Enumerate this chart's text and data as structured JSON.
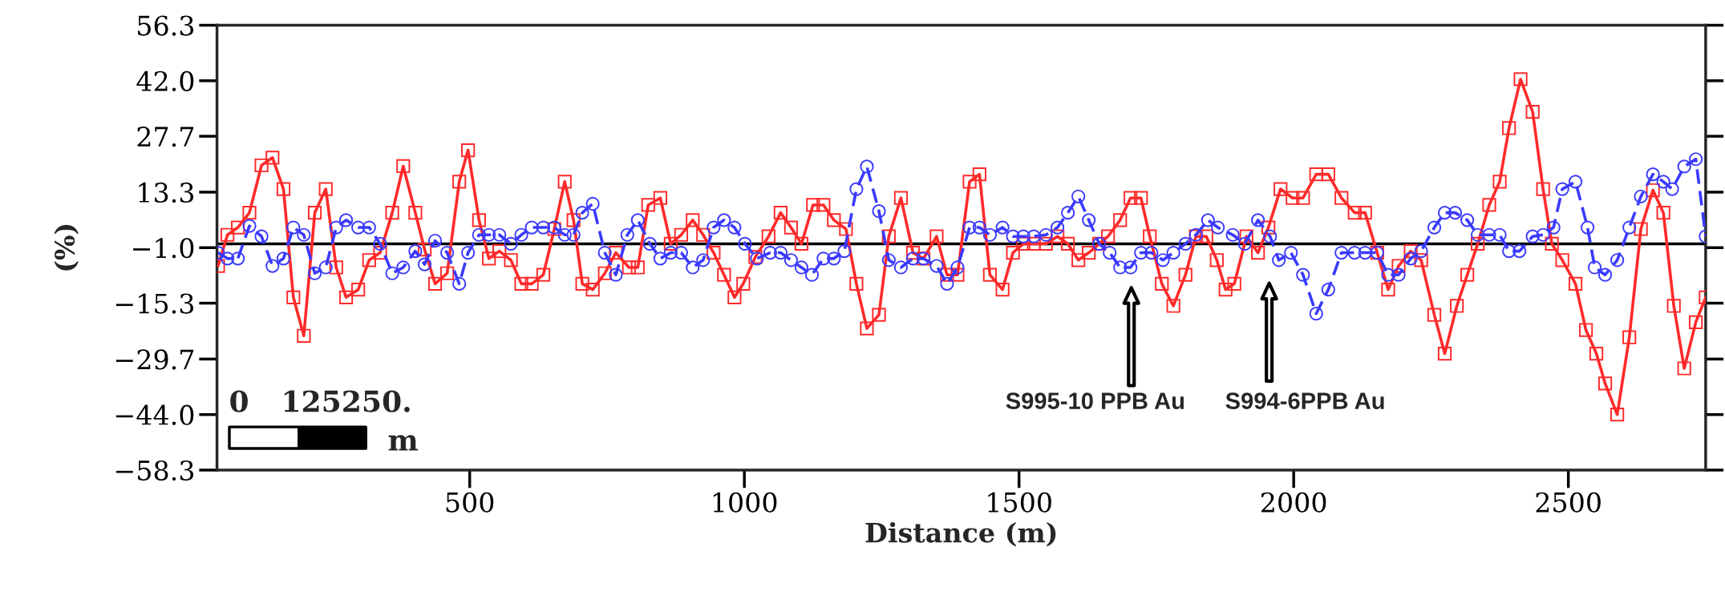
{
  "chart_data": {
    "type": "line",
    "xlabel": "Distance (m)",
    "ylabel": "(%)",
    "xlim": [
      40,
      2750
    ],
    "xticks": [
      500,
      1000,
      1500,
      2000,
      2500
    ],
    "ylim": [
      -58.3,
      56.3
    ],
    "yticks": [
      56.3,
      {
        "value": 42.0,
        "label": "42.0"
      },
      27.7,
      13.3,
      {
        "value": -1.0,
        "label": "−1.0"
      },
      {
        "value": -15.3,
        "label": "−15.3"
      },
      {
        "value": -29.7,
        "label": "−29.7"
      },
      {
        "value": -44.0,
        "label": "−44.0"
      },
      {
        "value": -58.3,
        "label": "−58.3"
      }
    ],
    "grid": false,
    "legend": false,
    "ref_lines": [
      {
        "axis": "y",
        "value": 0,
        "color": "#000000"
      }
    ],
    "series": [
      {
        "color": "#ff2a2a",
        "marker": "square",
        "line_style": "solid",
        "x": [
          42,
          59,
          78,
          99,
          121,
          141,
          161,
          179,
          198,
          218,
          238,
          257,
          275,
          297,
          317,
          337,
          359,
          379,
          401,
          418,
          437,
          459,
          481,
          497,
          517,
          535,
          554,
          575,
          594,
          613,
          634,
          654,
          673,
          689,
          705,
          724,
          746,
          766,
          790,
          806,
          825,
          847,
          866,
          885,
          906,
          925,
          944,
          963,
          982,
          998,
          1020,
          1044,
          1066,
          1085,
          1104,
          1125,
          1144,
          1163,
          1185,
          1204,
          1223,
          1245,
          1263,
          1285,
          1307,
          1326,
          1350,
          1369,
          1388,
          1410,
          1428,
          1447,
          1470,
          1489,
          1508,
          1527,
          1549,
          1570,
          1589,
          1608,
          1627,
          1646,
          1662,
          1684,
          1703,
          1722,
          1738,
          1760,
          1781,
          1803,
          1822,
          1841,
          1860,
          1876,
          1892,
          1914,
          1935,
          1954,
          1976,
          1998,
          2017,
          2041,
          2063,
          2087,
          2111,
          2130,
          2152,
          2172,
          2191,
          2213,
          2232,
          2256,
          2275,
          2297,
          2316,
          2335,
          2356,
          2375,
          2392,
          2413,
          2435,
          2454,
          2470,
          2489,
          2513,
          2532,
          2551,
          2567,
          2589,
          2611,
          2632,
          2654,
          2673,
          2692,
          2711,
          2732,
          2750
        ],
        "values": [
          -5.7,
          2.3,
          4.2,
          8.0,
          20.2,
          22.2,
          14.1,
          -13.8,
          -23.7,
          8.0,
          14.1,
          -6.1,
          -13.8,
          -11.8,
          -4.2,
          -2.3,
          8.0,
          20.0,
          8.0,
          -1.5,
          -10.3,
          -7.6,
          16.0,
          24.1,
          6.1,
          -3.8,
          -1.9,
          -4.2,
          -10.3,
          -10.3,
          -8.0,
          3.8,
          16.0,
          6.1,
          -10.3,
          -11.8,
          -7.6,
          -2.3,
          -6.1,
          -6.1,
          10.0,
          11.8,
          0,
          2.3,
          6.1,
          2.3,
          -2.3,
          -8.0,
          -13.8,
          -10.3,
          -3.4,
          1.9,
          8.0,
          4.2,
          0,
          10.0,
          10.0,
          6.1,
          3.8,
          -10.3,
          -21.8,
          -18.3,
          1.9,
          11.8,
          -2.3,
          -3.8,
          1.9,
          -8.0,
          -8.0,
          16.0,
          17.9,
          -8.0,
          -11.8,
          -2.3,
          0,
          0,
          0,
          1.9,
          0,
          -4.2,
          -2.3,
          0,
          1.9,
          6.1,
          11.8,
          11.8,
          1.9,
          -10.3,
          -16.0,
          -8.0,
          1.9,
          1.9,
          -4.2,
          -11.8,
          -10.3,
          1.9,
          -2.3,
          4.2,
          14.1,
          11.8,
          11.8,
          17.9,
          17.9,
          11.8,
          8.0,
          8.0,
          -2.3,
          -11.8,
          -5.7,
          -1.9,
          -4.2,
          -18.3,
          -28.3,
          -16.0,
          -8.0,
          0,
          10.0,
          16.0,
          29.8,
          42.4,
          34.0,
          14.1,
          0,
          -4.2,
          -10.3,
          -22.2,
          -28.3,
          -36.0,
          -44.0,
          -24.1,
          3.8,
          13.8,
          8.0,
          -16.0,
          -32.1,
          -20.2,
          -13.8
        ]
      },
      {
        "color": "#3a3aff",
        "marker": "circle",
        "line_style": "dashed",
        "x": [
          42,
          59,
          78,
          99,
          121,
          141,
          161,
          179,
          198,
          218,
          238,
          257,
          275,
          297,
          317,
          337,
          359,
          379,
          401,
          418,
          437,
          459,
          481,
          497,
          517,
          535,
          554,
          575,
          594,
          613,
          634,
          654,
          673,
          689,
          705,
          724,
          746,
          766,
          787,
          806,
          828,
          847,
          866,
          885,
          906,
          925,
          944,
          963,
          982,
          1001,
          1023,
          1047,
          1066,
          1085,
          1104,
          1123,
          1144,
          1163,
          1182,
          1204,
          1223,
          1245,
          1263,
          1285,
          1307,
          1326,
          1350,
          1369,
          1388,
          1410,
          1428,
          1447,
          1470,
          1489,
          1508,
          1527,
          1549,
          1570,
          1589,
          1608,
          1627,
          1646,
          1665,
          1684,
          1703,
          1722,
          1741,
          1762,
          1781,
          1803,
          1822,
          1844,
          1862,
          1889,
          1911,
          1935,
          1957,
          1973,
          1995,
          2017,
          2041,
          2063,
          2087,
          2111,
          2130,
          2152,
          2172,
          2191,
          2213,
          2232,
          2256,
          2275,
          2294,
          2316,
          2335,
          2356,
          2375,
          2392,
          2411,
          2435,
          2454,
          2473,
          2489,
          2513,
          2535,
          2548,
          2567,
          2589,
          2611,
          2632,
          2654,
          2673,
          2689,
          2711,
          2732,
          2750
        ],
        "values": [
          -2.3,
          -3.8,
          -3.8,
          4.6,
          1.9,
          -5.7,
          -3.8,
          4.2,
          2.3,
          -7.6,
          -6.1,
          4.2,
          6.1,
          4.2,
          4.2,
          0,
          -7.6,
          -6.1,
          -1.9,
          -5.3,
          0.8,
          -2.3,
          -10.3,
          -2.3,
          2.3,
          2.3,
          2.3,
          0,
          2.3,
          4.2,
          4.2,
          4.2,
          2.3,
          2.3,
          8.0,
          10.3,
          -2.3,
          -8.0,
          2.3,
          6.1,
          0,
          -3.8,
          -2.3,
          -2.3,
          -6.1,
          -4.2,
          4.2,
          6.1,
          4.2,
          0,
          -3.8,
          -2.3,
          -2.3,
          -4.2,
          -6.1,
          -8.0,
          -3.8,
          -3.8,
          -1.9,
          14.1,
          19.9,
          8.4,
          -4.2,
          -6.1,
          -3.8,
          -3.8,
          -5.7,
          -10.3,
          -6.1,
          4.2,
          4.2,
          2.3,
          4.2,
          1.9,
          1.9,
          1.9,
          2.3,
          4.2,
          8.0,
          12.2,
          6.1,
          0,
          -2.3,
          -6.1,
          -6.1,
          -2.3,
          -2.3,
          -4.2,
          -2.3,
          0,
          2.3,
          6.1,
          4.2,
          2.3,
          0,
          6.1,
          1.9,
          -4.2,
          -2.3,
          -8.0,
          -18.0,
          -11.8,
          -2.3,
          -2.3,
          -2.3,
          -2.3,
          -8.0,
          -8.0,
          -3.8,
          -1.9,
          4.2,
          8.0,
          8.0,
          6.1,
          2.3,
          2.3,
          2.3,
          -1.9,
          -1.9,
          1.9,
          2.3,
          4.2,
          14.1,
          16.0,
          4.2,
          -6.1,
          -8.0,
          -4.2,
          4.2,
          12.2,
          17.9,
          16.0,
          14.1,
          19.9,
          21.8,
          1.9
        ]
      }
    ],
    "annotations": [
      "0",
      "125250.",
      "m",
      "S995-10 PPB Au",
      "S994-6PPB Au"
    ]
  }
}
